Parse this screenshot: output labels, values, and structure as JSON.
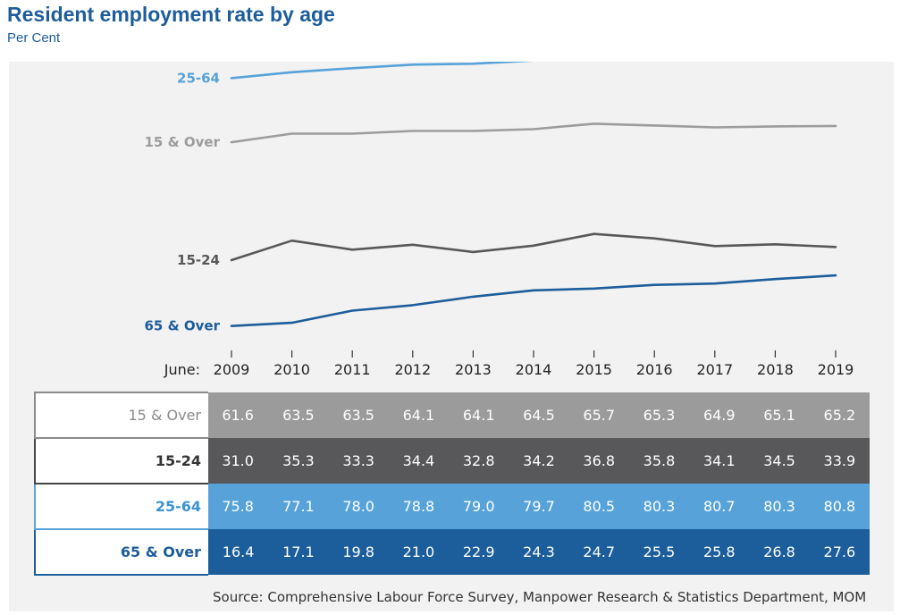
{
  "header": {
    "title": "Resident employment rate by age",
    "subtitle": "Per Cent"
  },
  "chart_data": {
    "type": "line",
    "x_prefix": "June:",
    "categories": [
      "2009",
      "2010",
      "2011",
      "2012",
      "2013",
      "2014",
      "2015",
      "2016",
      "2017",
      "2018",
      "2019"
    ],
    "series": [
      {
        "name": "25-64",
        "color": "#56a2d9",
        "values": [
          75.8,
          77.1,
          78.0,
          78.8,
          79.0,
          79.7,
          80.5,
          80.3,
          80.7,
          80.3,
          80.8
        ]
      },
      {
        "name": "15 & Over",
        "color": "#9c9c9c",
        "values": [
          61.6,
          63.5,
          63.5,
          64.1,
          64.1,
          64.5,
          65.7,
          65.3,
          64.9,
          65.1,
          65.2
        ]
      },
      {
        "name": "15-24",
        "color": "#58585a",
        "values": [
          31.0,
          35.3,
          33.3,
          34.4,
          32.8,
          34.2,
          36.8,
          35.8,
          34.1,
          34.5,
          33.9
        ]
      },
      {
        "name": "65 & Over",
        "color": "#1c5d9c",
        "values": [
          16.4,
          17.1,
          19.8,
          21.0,
          22.9,
          24.3,
          24.7,
          25.5,
          25.8,
          26.8,
          27.6
        ]
      }
    ],
    "grid": false,
    "legend": "inline-left"
  },
  "table": {
    "rows": [
      {
        "label": "15 & Over",
        "label_color": "#8a8a8a",
        "border_color": "#8a8a8a",
        "bg": "#9b9b9b",
        "values": [
          "61.6",
          "63.5",
          "63.5",
          "64.1",
          "64.1",
          "64.5",
          "65.7",
          "65.3",
          "64.9",
          "65.1",
          "65.2"
        ]
      },
      {
        "label": "15-24",
        "label_color": "#333333",
        "border_color": "#444444",
        "bg": "#58585a",
        "values": [
          "31.0",
          "35.3",
          "33.3",
          "34.4",
          "32.8",
          "34.2",
          "36.8",
          "35.8",
          "34.1",
          "34.5",
          "33.9"
        ]
      },
      {
        "label": "25-64",
        "label_color": "#3c93d2",
        "border_color": "#56a2d9",
        "bg": "#56a2d9",
        "values": [
          "75.8",
          "77.1",
          "78.0",
          "78.8",
          "79.0",
          "79.7",
          "80.5",
          "80.3",
          "80.7",
          "80.3",
          "80.8"
        ]
      },
      {
        "label": "65 & Over",
        "label_color": "#1c5d9c",
        "border_color": "#1c5d9c",
        "bg": "#1c5d9c",
        "values": [
          "16.4",
          "17.1",
          "19.8",
          "21.0",
          "22.9",
          "24.3",
          "24.7",
          "25.5",
          "25.8",
          "26.8",
          "27.6"
        ]
      }
    ]
  },
  "footer": {
    "source": "Source: Comprehensive Labour Force Survey, Manpower Research & Statistics Department, MOM"
  }
}
